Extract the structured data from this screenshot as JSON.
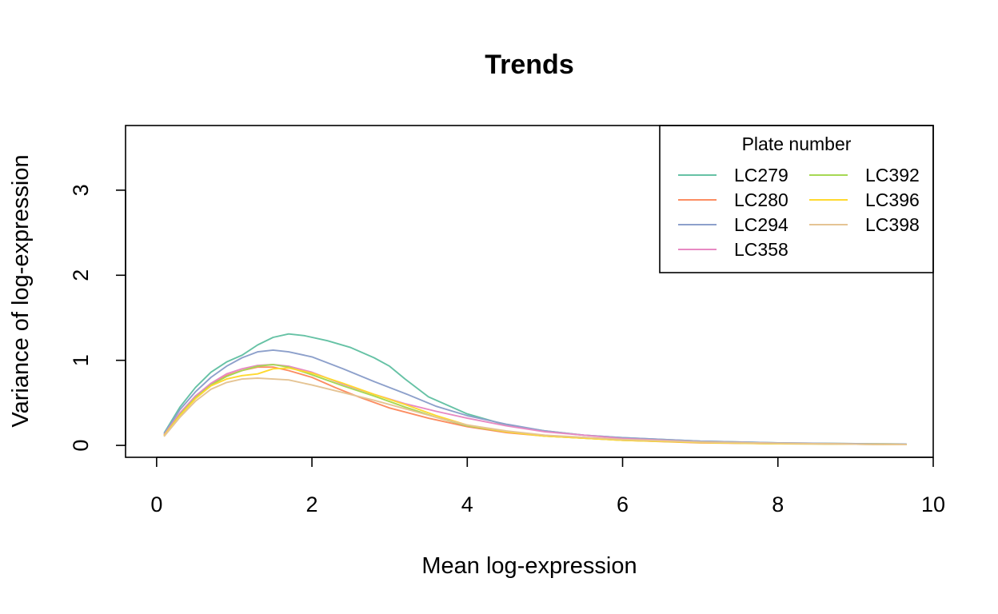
{
  "chart_data": {
    "type": "line",
    "title": "Trends",
    "xlabel": "Mean log-expression",
    "ylabel": "Variance of log-expression",
    "xlim": [
      -0.4,
      10
    ],
    "ylim": [
      -0.14,
      3.76
    ],
    "xticks": [
      0,
      2,
      4,
      6,
      8,
      10
    ],
    "yticks": [
      0,
      1,
      2,
      3
    ],
    "grid": false,
    "legend": {
      "title": "Plate number",
      "position": "top-right",
      "columns": 2
    },
    "series": [
      {
        "name": "LC279",
        "color": "#66C2A5",
        "points": [
          [
            0.1,
            0.15
          ],
          [
            0.3,
            0.45
          ],
          [
            0.5,
            0.68
          ],
          [
            0.7,
            0.86
          ],
          [
            0.9,
            0.98
          ],
          [
            1.1,
            1.06
          ],
          [
            1.3,
            1.18
          ],
          [
            1.5,
            1.27
          ],
          [
            1.7,
            1.31
          ],
          [
            1.9,
            1.29
          ],
          [
            2.2,
            1.23
          ],
          [
            2.5,
            1.15
          ],
          [
            2.8,
            1.03
          ],
          [
            3.0,
            0.93
          ],
          [
            3.2,
            0.78
          ],
          [
            3.5,
            0.57
          ],
          [
            4.0,
            0.37
          ],
          [
            4.5,
            0.24
          ],
          [
            5.0,
            0.17
          ],
          [
            5.5,
            0.12
          ],
          [
            6.0,
            0.09
          ],
          [
            7.0,
            0.05
          ],
          [
            8.0,
            0.03
          ],
          [
            9.0,
            0.02
          ],
          [
            9.65,
            0.015
          ]
        ]
      },
      {
        "name": "LC280",
        "color": "#FC8D62",
        "points": [
          [
            0.1,
            0.13
          ],
          [
            0.3,
            0.38
          ],
          [
            0.5,
            0.58
          ],
          [
            0.7,
            0.72
          ],
          [
            0.9,
            0.82
          ],
          [
            1.1,
            0.88
          ],
          [
            1.3,
            0.92
          ],
          [
            1.5,
            0.92
          ],
          [
            1.7,
            0.88
          ],
          [
            2.0,
            0.8
          ],
          [
            2.3,
            0.68
          ],
          [
            2.6,
            0.57
          ],
          [
            3.0,
            0.44
          ],
          [
            3.5,
            0.32
          ],
          [
            4.0,
            0.22
          ],
          [
            4.5,
            0.15
          ],
          [
            5.0,
            0.11
          ],
          [
            6.0,
            0.06
          ],
          [
            7.0,
            0.03
          ],
          [
            8.0,
            0.02
          ],
          [
            9.0,
            0.015
          ],
          [
            9.65,
            0.01
          ]
        ]
      },
      {
        "name": "LC294",
        "color": "#8DA0CB",
        "points": [
          [
            0.1,
            0.14
          ],
          [
            0.3,
            0.42
          ],
          [
            0.5,
            0.63
          ],
          [
            0.7,
            0.8
          ],
          [
            0.9,
            0.93
          ],
          [
            1.1,
            1.03
          ],
          [
            1.3,
            1.1
          ],
          [
            1.5,
            1.12
          ],
          [
            1.7,
            1.1
          ],
          [
            2.0,
            1.04
          ],
          [
            2.4,
            0.9
          ],
          [
            2.8,
            0.75
          ],
          [
            3.2,
            0.61
          ],
          [
            3.6,
            0.46
          ],
          [
            4.0,
            0.35
          ],
          [
            4.5,
            0.25
          ],
          [
            5.0,
            0.17
          ],
          [
            5.5,
            0.12
          ],
          [
            6.0,
            0.09
          ],
          [
            7.0,
            0.05
          ],
          [
            8.0,
            0.03
          ],
          [
            9.0,
            0.02
          ],
          [
            9.65,
            0.015
          ]
        ]
      },
      {
        "name": "LC358",
        "color": "#E78AC3",
        "points": [
          [
            0.1,
            0.13
          ],
          [
            0.3,
            0.38
          ],
          [
            0.5,
            0.58
          ],
          [
            0.7,
            0.73
          ],
          [
            0.9,
            0.84
          ],
          [
            1.1,
            0.9
          ],
          [
            1.3,
            0.94
          ],
          [
            1.5,
            0.95
          ],
          [
            1.7,
            0.93
          ],
          [
            2.0,
            0.86
          ],
          [
            2.4,
            0.72
          ],
          [
            2.8,
            0.6
          ],
          [
            3.2,
            0.49
          ],
          [
            3.6,
            0.4
          ],
          [
            4.0,
            0.32
          ],
          [
            4.5,
            0.23
          ],
          [
            5.0,
            0.16
          ],
          [
            5.5,
            0.12
          ],
          [
            6.0,
            0.08
          ],
          [
            7.0,
            0.04
          ],
          [
            8.0,
            0.025
          ],
          [
            9.0,
            0.015
          ],
          [
            9.65,
            0.01
          ]
        ]
      },
      {
        "name": "LC392",
        "color": "#A6D854",
        "points": [
          [
            0.1,
            0.12
          ],
          [
            0.3,
            0.36
          ],
          [
            0.5,
            0.56
          ],
          [
            0.7,
            0.71
          ],
          [
            0.9,
            0.81
          ],
          [
            1.1,
            0.88
          ],
          [
            1.3,
            0.93
          ],
          [
            1.5,
            0.95
          ],
          [
            1.7,
            0.92
          ],
          [
            2.0,
            0.83
          ],
          [
            2.4,
            0.7
          ],
          [
            2.8,
            0.58
          ],
          [
            3.2,
            0.45
          ],
          [
            3.6,
            0.33
          ],
          [
            4.0,
            0.23
          ],
          [
            4.5,
            0.16
          ],
          [
            5.0,
            0.11
          ],
          [
            6.0,
            0.06
          ],
          [
            7.0,
            0.035
          ],
          [
            8.0,
            0.02
          ],
          [
            9.0,
            0.015
          ],
          [
            9.65,
            0.01
          ]
        ]
      },
      {
        "name": "LC396",
        "color": "#FFD92F",
        "points": [
          [
            0.1,
            0.12
          ],
          [
            0.3,
            0.35
          ],
          [
            0.5,
            0.55
          ],
          [
            0.7,
            0.7
          ],
          [
            0.9,
            0.78
          ],
          [
            1.1,
            0.82
          ],
          [
            1.3,
            0.84
          ],
          [
            1.5,
            0.9
          ],
          [
            1.7,
            0.91
          ],
          [
            2.0,
            0.85
          ],
          [
            2.4,
            0.73
          ],
          [
            2.8,
            0.6
          ],
          [
            3.2,
            0.48
          ],
          [
            3.6,
            0.35
          ],
          [
            4.0,
            0.24
          ],
          [
            4.5,
            0.16
          ],
          [
            5.0,
            0.11
          ],
          [
            6.0,
            0.06
          ],
          [
            7.0,
            0.035
          ],
          [
            8.0,
            0.02
          ],
          [
            9.0,
            0.015
          ],
          [
            9.65,
            0.01
          ]
        ]
      },
      {
        "name": "LC398",
        "color": "#E5C494",
        "points": [
          [
            0.1,
            0.11
          ],
          [
            0.3,
            0.33
          ],
          [
            0.5,
            0.52
          ],
          [
            0.7,
            0.66
          ],
          [
            0.9,
            0.74
          ],
          [
            1.1,
            0.78
          ],
          [
            1.3,
            0.79
          ],
          [
            1.5,
            0.78
          ],
          [
            1.7,
            0.77
          ],
          [
            2.0,
            0.71
          ],
          [
            2.4,
            0.62
          ],
          [
            2.8,
            0.53
          ],
          [
            3.2,
            0.43
          ],
          [
            3.6,
            0.33
          ],
          [
            4.0,
            0.24
          ],
          [
            4.5,
            0.17
          ],
          [
            5.0,
            0.12
          ],
          [
            6.0,
            0.07
          ],
          [
            7.0,
            0.04
          ],
          [
            8.0,
            0.025
          ],
          [
            9.0,
            0.015
          ],
          [
            9.65,
            0.01
          ]
        ]
      }
    ]
  }
}
